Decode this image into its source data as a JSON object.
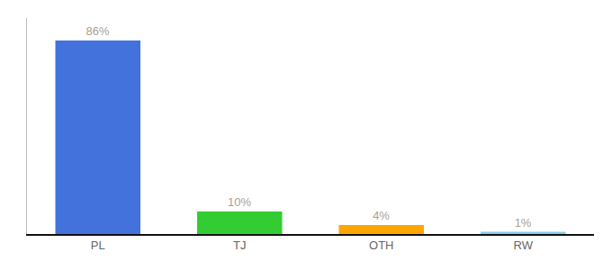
{
  "chart_data": {
    "type": "bar",
    "categories": [
      "PL",
      "TJ",
      "OTH",
      "RW"
    ],
    "values": [
      86,
      10,
      4,
      1
    ],
    "value_labels": [
      "86%",
      "10%",
      "4%",
      "1%"
    ],
    "colors": [
      "#4472DD",
      "#33CC33",
      "#FFA500",
      "#87CEEB"
    ],
    "data_labels": true,
    "ylim": [
      0,
      96
    ],
    "tick_labels": "x",
    "grid": false
  }
}
